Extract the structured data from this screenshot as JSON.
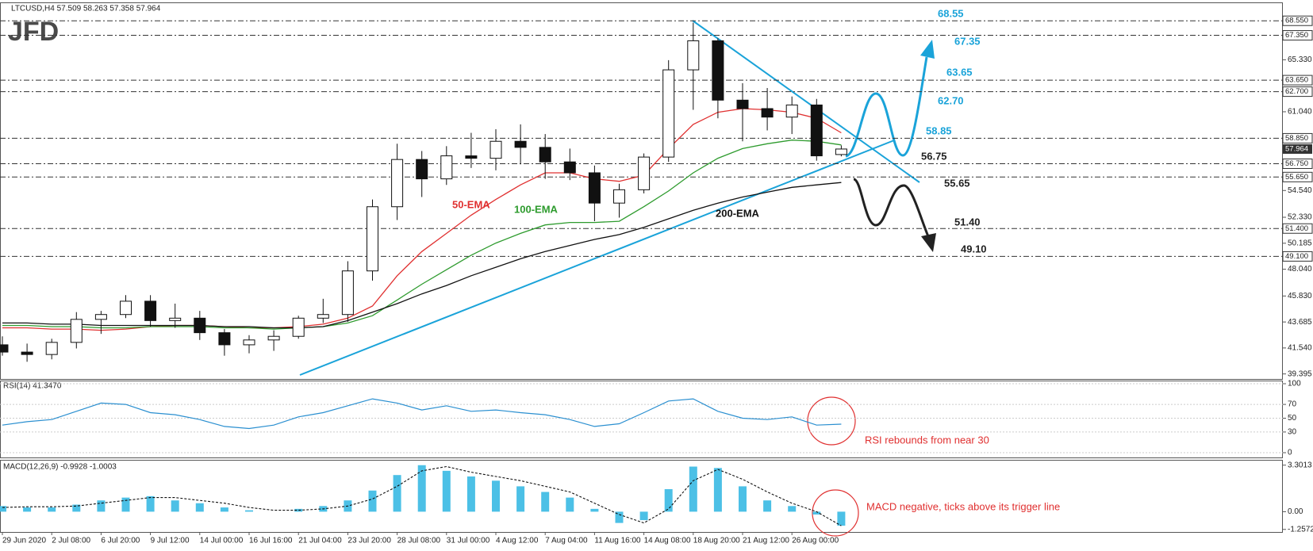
{
  "chart_data": [
    {
      "type": "candlestick",
      "title": "LTCUSD,H4 57.509 58.263 57.358 57.964",
      "logo": "JFD",
      "categories": [
        "29 Jun 2020",
        null,
        "2 Jul 08:00",
        null,
        "6 Jul 20:00",
        null,
        "9 Jul 12:00",
        null,
        "14 Jul 00:00",
        null,
        "16 Jul 16:00",
        null,
        "21 Jul 04:00",
        null,
        "23 Jul 20:00",
        null,
        "28 Jul 08:00",
        null,
        "31 Jul 00:00",
        null,
        "4 Aug 12:00",
        null,
        "7 Aug 04:00",
        null,
        "11 Aug 16:00",
        null,
        "14 Aug 08:00",
        null,
        "18 Aug 20:00",
        null,
        "21 Aug 12:00",
        null,
        "26 Aug 00:00",
        null,
        null
      ],
      "open": [
        41.8,
        41.2,
        41.0,
        42.0,
        43.9,
        44.3,
        45.4,
        43.8,
        44.0,
        42.8,
        41.8,
        42.2,
        42.5,
        44.0,
        44.3,
        47.9,
        53.2,
        57.1,
        55.5,
        57.4,
        57.2,
        58.6,
        58.1,
        56.9,
        56.0,
        53.5,
        54.6,
        57.3,
        64.5,
        66.9,
        62.0,
        61.3,
        60.6,
        61.6,
        57.509
      ],
      "high": [
        42.5,
        41.9,
        42.3,
        44.5,
        44.6,
        45.9,
        45.9,
        45.2,
        44.6,
        43.1,
        42.6,
        43.0,
        44.2,
        45.6,
        48.7,
        53.8,
        58.4,
        57.8,
        58.2,
        59.3,
        59.6,
        60.0,
        59.2,
        58.0,
        56.6,
        55.1,
        57.6,
        65.3,
        68.4,
        67.1,
        63.4,
        63.0,
        62.3,
        62.1,
        58.263
      ],
      "low": [
        40.9,
        40.4,
        40.6,
        41.5,
        42.7,
        44.0,
        43.3,
        43.2,
        42.2,
        40.9,
        41.1,
        41.3,
        42.3,
        43.6,
        43.7,
        47.1,
        52.1,
        54.0,
        55.0,
        56.4,
        56.2,
        56.7,
        55.5,
        55.4,
        52.0,
        52.3,
        54.3,
        56.9,
        61.2,
        60.5,
        58.6,
        59.5,
        59.2,
        57.0,
        57.358
      ],
      "close": [
        41.2,
        41.0,
        42.0,
        43.9,
        44.3,
        45.4,
        43.8,
        44.0,
        42.8,
        41.8,
        42.2,
        42.5,
        44.0,
        44.3,
        47.9,
        53.2,
        57.1,
        55.5,
        57.4,
        57.2,
        58.6,
        58.1,
        56.9,
        56.0,
        53.5,
        54.6,
        57.3,
        64.5,
        66.9,
        62.0,
        61.3,
        60.6,
        61.6,
        57.4,
        57.964
      ],
      "series": [
        {
          "name": "50-EMA",
          "color": "#e03030",
          "values": [
            43.2,
            43.2,
            43.1,
            43.1,
            43.0,
            43.1,
            43.3,
            43.4,
            43.4,
            43.3,
            43.2,
            43.2,
            43.3,
            43.5,
            44.0,
            45.0,
            47.5,
            49.5,
            51.0,
            52.5,
            53.8,
            55.0,
            56.0,
            56.0,
            55.5,
            55.3,
            55.8,
            58.0,
            60.0,
            61.0,
            61.3,
            61.2,
            61.0,
            60.5,
            59.3
          ]
        },
        {
          "name": "100-EMA",
          "color": "#2e9b2e",
          "values": [
            43.4,
            43.4,
            43.3,
            43.3,
            43.2,
            43.2,
            43.3,
            43.3,
            43.3,
            43.2,
            43.2,
            43.1,
            43.2,
            43.3,
            43.6,
            44.2,
            45.5,
            46.8,
            48.0,
            49.2,
            50.2,
            51.0,
            51.7,
            51.9,
            51.9,
            52.0,
            53.2,
            54.5,
            56.0,
            57.2,
            58.0,
            58.4,
            58.7,
            58.6,
            58.3
          ]
        },
        {
          "name": "200-EMA",
          "color": "#111111",
          "values": [
            43.6,
            43.6,
            43.5,
            43.5,
            43.4,
            43.4,
            43.4,
            43.4,
            43.4,
            43.3,
            43.3,
            43.2,
            43.2,
            43.3,
            43.8,
            44.5,
            45.2,
            46.0,
            46.7,
            47.5,
            48.2,
            48.9,
            49.5,
            50.0,
            50.5,
            50.9,
            51.5,
            52.2,
            52.9,
            53.5,
            54.0,
            54.4,
            54.8,
            55.0,
            55.2
          ]
        }
      ],
      "ylim": [
        38.98,
        70.07
      ],
      "yticks": [
        {
          "value": 65.33,
          "label": "65.330"
        },
        {
          "value": 61.04,
          "label": "61.040"
        },
        {
          "value": 54.54,
          "label": "54.540"
        },
        {
          "value": 52.33,
          "label": "52.330"
        },
        {
          "value": 50.185,
          "label": "50.185"
        },
        {
          "value": 48.04,
          "label": "48.040"
        },
        {
          "value": 45.83,
          "label": "45.830"
        },
        {
          "value": 43.685,
          "label": "43.685"
        },
        {
          "value": 41.54,
          "label": "41.540"
        },
        {
          "value": 39.395,
          "label": "39.395"
        }
      ],
      "levels": {
        "resistance": [
          {
            "value": 68.55,
            "label": "68.550",
            "annotation": "68.55"
          },
          {
            "value": 67.35,
            "label": "67.350",
            "annotation": "67.35"
          },
          {
            "value": 63.65,
            "label": "63.650",
            "annotation": "63.65"
          },
          {
            "value": 62.7,
            "label": "62.700",
            "annotation": "62.70"
          },
          {
            "value": 58.85,
            "label": "58.850",
            "annotation": "58.85"
          }
        ],
        "support": [
          {
            "value": 56.75,
            "label": "56.750",
            "annotation": "56.75"
          },
          {
            "value": 55.65,
            "label": "55.650",
            "annotation": "55.65"
          },
          {
            "value": 51.4,
            "label": "51.400",
            "annotation": "51.40"
          },
          {
            "value": 49.1,
            "label": "49.100",
            "annotation": "49.10"
          }
        ]
      },
      "resistance_color": "#1aa3d9",
      "support_color": "#222222",
      "last_price": {
        "value": 57.964,
        "label": "57.964"
      }
    },
    {
      "type": "line",
      "title": "RSI(14) 41.3470",
      "series": [
        {
          "color": "#2a8fd0",
          "values": [
            40,
            45,
            48,
            60,
            72,
            70,
            58,
            55,
            48,
            38,
            35,
            40,
            52,
            58,
            68,
            78,
            72,
            62,
            68,
            60,
            62,
            58,
            55,
            48,
            38,
            42,
            58,
            75,
            78,
            60,
            50,
            48,
            52,
            40,
            41.347
          ]
        }
      ],
      "ylim": [
        0,
        100
      ],
      "yticks": [
        0,
        30,
        50,
        70,
        100
      ],
      "annotation": "RSI rebounds from near 30"
    },
    {
      "type": "macd",
      "title": "MACD(12,26,9) -0.9928 -1.0003",
      "histogram": {
        "color": "#4cc0e6",
        "values": [
          0.4,
          0.3,
          0.3,
          0.5,
          0.8,
          1.0,
          1.1,
          0.8,
          0.6,
          0.3,
          0.1,
          0.0,
          0.2,
          0.4,
          0.8,
          1.5,
          2.6,
          3.3,
          2.9,
          2.5,
          2.2,
          1.8,
          1.4,
          1.0,
          0.2,
          -0.8,
          -0.6,
          1.6,
          3.2,
          3.1,
          1.8,
          0.8,
          0.4,
          -0.2,
          -0.9928
        ]
      },
      "signal": {
        "color": "#111111",
        "values": [
          0.3,
          0.35,
          0.35,
          0.4,
          0.6,
          0.8,
          1.0,
          1.0,
          0.8,
          0.6,
          0.3,
          0.1,
          0.1,
          0.2,
          0.4,
          0.9,
          1.8,
          2.9,
          3.2,
          2.8,
          2.5,
          2.2,
          1.8,
          1.4,
          0.6,
          -0.2,
          -0.8,
          0.2,
          2.2,
          3.0,
          2.3,
          1.4,
          0.6,
          0.0,
          -1.0003
        ]
      },
      "ylim": [
        -1.44,
        3.68
      ],
      "yticks": [
        {
          "value": 3.3013,
          "label": "3.3013"
        },
        {
          "value": 0,
          "label": "0.00"
        },
        {
          "value": -1.2572,
          "label": "-1.2572"
        }
      ],
      "annotation": "MACD negative, ticks above its trigger line"
    }
  ]
}
